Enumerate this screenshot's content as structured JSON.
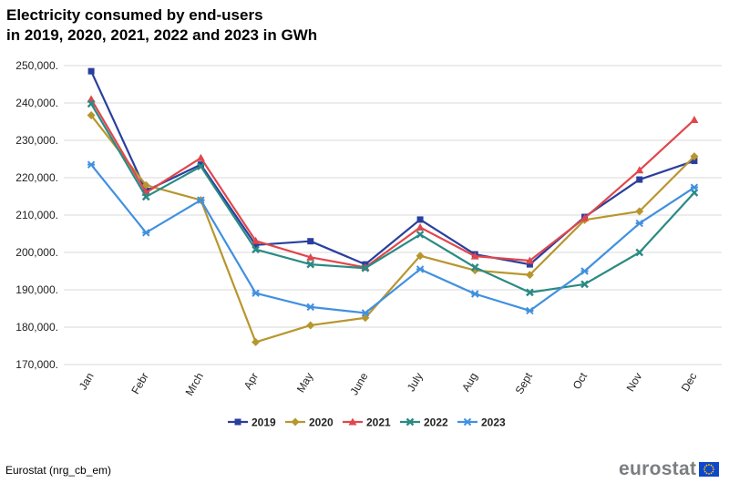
{
  "header": {
    "title_line1": "Electricity consumed by end-users",
    "title_line2": "in 2019, 2020, 2021, 2022 and 2023 in GWh"
  },
  "footer": {
    "source": "Eurostat (nrg_cb_em)",
    "logo_text": "eurostat"
  },
  "colors": {
    "2019": "#2a3f9d",
    "2020": "#b8962e",
    "2021": "#e0474c",
    "2022": "#2a8a84",
    "2023": "#4190e0",
    "grid": "#d9d9d9",
    "logo_grey": "#7a7e80",
    "eu_blue": "#0e47cb",
    "eu_yellow": "#ffcc00"
  },
  "chart_data": {
    "type": "line",
    "title": "Electricity consumed by end-users in 2019, 2020, 2021, 2022 and 2023 in GWh",
    "xlabel": "",
    "ylabel": "",
    "ylim": [
      170000,
      250000
    ],
    "yticks": [
      170000,
      180000,
      190000,
      200000,
      210000,
      220000,
      230000,
      240000,
      250000
    ],
    "ytick_labels": [
      "170,000.",
      "180,000.",
      "190,000.",
      "200,000.",
      "210,000.",
      "220,000.",
      "230,000.",
      "240,000.",
      "250,000."
    ],
    "categories": [
      "Jan",
      "Febr",
      "Mrch",
      "Apr",
      "May",
      "June",
      "July",
      "Aug",
      "Sept",
      "Oct",
      "Nov",
      "Dec"
    ],
    "grid": true,
    "legend_position": "bottom-center",
    "series": [
      {
        "name": "2019",
        "marker": "square",
        "values": [
          248500,
          216500,
          223500,
          202000,
          203000,
          196800,
          208800,
          199500,
          196800,
          209500,
          219500,
          224500
        ]
      },
      {
        "name": "2020",
        "marker": "diamond",
        "values": [
          236700,
          218000,
          214000,
          176000,
          180500,
          182500,
          199100,
          195200,
          194000,
          208700,
          211000,
          225700
        ]
      },
      {
        "name": "2021",
        "marker": "triangle",
        "values": [
          241000,
          216000,
          225300,
          203100,
          198700,
          196000,
          206700,
          199000,
          197800,
          209200,
          222000,
          235500
        ]
      },
      {
        "name": "2022",
        "marker": "x",
        "values": [
          239800,
          214900,
          223000,
          200800,
          196800,
          195800,
          204800,
          196000,
          189300,
          191500,
          200000,
          216000
        ]
      },
      {
        "name": "2023",
        "marker": "star",
        "values": [
          223500,
          205300,
          214000,
          189100,
          185400,
          183800,
          195500,
          188900,
          184400,
          195000,
          207800,
          217400
        ]
      }
    ]
  }
}
